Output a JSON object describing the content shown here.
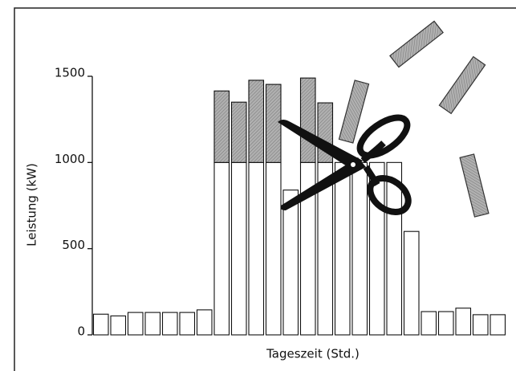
{
  "chart_data": {
    "type": "stacked_bar",
    "x_label": "Tageszeit (Std.)",
    "y_label": "Leistung (kW)",
    "categories": [
      null,
      null,
      null,
      null,
      null,
      null,
      null,
      null,
      null,
      null,
      null,
      null,
      null,
      null,
      null,
      null,
      null,
      null,
      null,
      null,
      null,
      null,
      null,
      null
    ],
    "series": [
      {
        "color": "#ffffff",
        "values": [
          120,
          110,
          130,
          130,
          130,
          130,
          145,
          1000,
          1000,
          1000,
          1000,
          840,
          1000,
          1000,
          1000,
          1000,
          1000,
          1000,
          600,
          135,
          135,
          155,
          117,
          117
        ]
      },
      {
        "color": "#a6a6a6",
        "values": [
          0,
          0,
          0,
          0,
          0,
          0,
          0,
          415,
          350,
          477,
          453,
          0,
          490,
          346,
          0,
          0,
          0,
          0,
          0,
          0,
          0,
          0,
          0,
          0
        ]
      }
    ],
    "ylim": [
      0,
      1500
    ],
    "yticks": [
      0,
      500,
      1000,
      1500
    ]
  }
}
